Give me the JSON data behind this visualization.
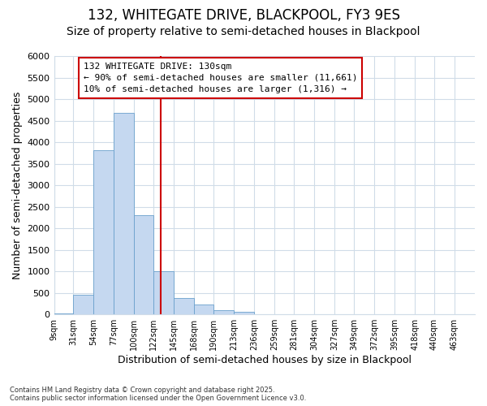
{
  "title": "132, WHITEGATE DRIVE, BLACKPOOL, FY3 9ES",
  "subtitle": "Size of property relative to semi-detached houses in Blackpool",
  "xlabel": "Distribution of semi-detached houses by size in Blackpool",
  "ylabel": "Number of semi-detached properties",
  "categories": [
    "9sqm",
    "31sqm",
    "54sqm",
    "77sqm",
    "100sqm",
    "122sqm",
    "145sqm",
    "168sqm",
    "190sqm",
    "213sqm",
    "236sqm",
    "259sqm",
    "281sqm",
    "304sqm",
    "327sqm",
    "349sqm",
    "372sqm",
    "395sqm",
    "418sqm",
    "440sqm",
    "463sqm"
  ],
  "bin_edges": [
    9,
    31,
    54,
    77,
    100,
    122,
    145,
    168,
    190,
    213,
    236,
    259,
    281,
    304,
    327,
    349,
    372,
    395,
    418,
    440,
    463,
    486
  ],
  "values": [
    15,
    450,
    3820,
    4680,
    2300,
    1000,
    390,
    235,
    100,
    60,
    5,
    0,
    0,
    0,
    0,
    0,
    0,
    0,
    0,
    0,
    0
  ],
  "bar_color": "#c5d8f0",
  "bar_edge_color": "#6aa0cc",
  "vertical_line_x": 130,
  "vertical_line_color": "#cc0000",
  "annotation_title": "132 WHITEGATE DRIVE: 130sqm",
  "annotation_line1": "← 90% of semi-detached houses are smaller (11,661)",
  "annotation_line2": "10% of semi-detached houses are larger (1,316) →",
  "annotation_box_color": "#cc0000",
  "ylim": [
    0,
    6000
  ],
  "yticks": [
    0,
    500,
    1000,
    1500,
    2000,
    2500,
    3000,
    3500,
    4000,
    4500,
    5000,
    5500,
    6000
  ],
  "background_color": "#ffffff",
  "plot_bg_color": "#ffffff",
  "grid_color": "#d0dce8",
  "footnote": "Contains HM Land Registry data © Crown copyright and database right 2025.\nContains public sector information licensed under the Open Government Licence v3.0.",
  "title_fontsize": 12,
  "subtitle_fontsize": 10,
  "xlabel_fontsize": 9,
  "ylabel_fontsize": 9,
  "annotation_fontsize": 8
}
